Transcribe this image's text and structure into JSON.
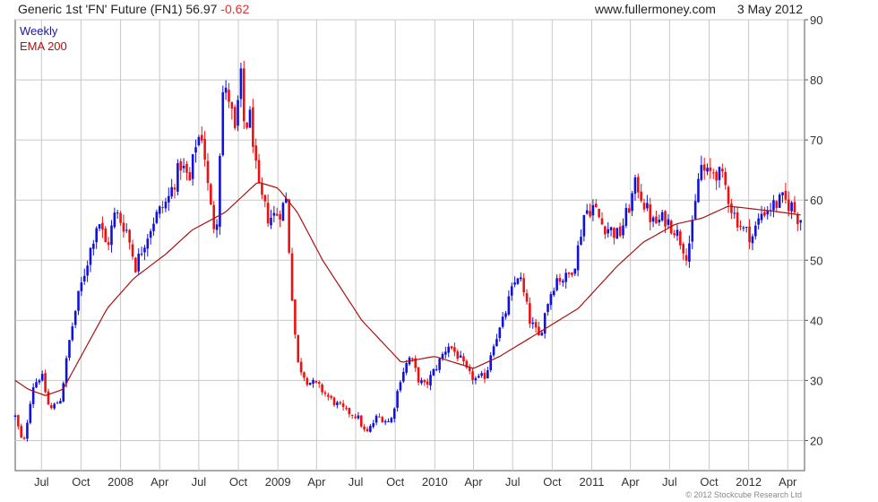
{
  "header": {
    "instrument": "Generic 1st 'FN' Future (FN1)",
    "last_price": "56.97",
    "change": "-0.62",
    "site": "www.fullermoney.com",
    "date": "3 May 2012"
  },
  "footer": {
    "copyright": "© 2012 Stockcube Research Ltd"
  },
  "colors": {
    "up": "#1111dd",
    "down": "#ee1111",
    "ema": "#aa1111",
    "grid": "#c8c8c8",
    "axis": "#555555"
  },
  "chart_data": {
    "type": "candlestick",
    "legend": [
      {
        "label": "Weekly",
        "color": "#1a1a9a"
      },
      {
        "label": "EMA 200",
        "color": "#aa1111"
      }
    ],
    "ylim": [
      15,
      90
    ],
    "y_ticks": [
      20,
      30,
      40,
      50,
      60,
      70,
      80,
      90
    ],
    "x_tick_labels": [
      "Jul",
      "Oct",
      "2008",
      "Apr",
      "Jul",
      "Oct",
      "2009",
      "Apr",
      "Jul",
      "Oct",
      "2010",
      "Apr",
      "Jul",
      "Oct",
      "2011",
      "Apr",
      "Jul",
      "Oct",
      "2012",
      "Apr"
    ],
    "x_tick_months": [
      "2007-07",
      "2007-10",
      "2008-01",
      "2008-04",
      "2008-07",
      "2008-10",
      "2009-01",
      "2009-04",
      "2009-07",
      "2009-10",
      "2010-01",
      "2010-04",
      "2010-07",
      "2010-10",
      "2011-01",
      "2011-04",
      "2011-07",
      "2011-10",
      "2012-01",
      "2012-04"
    ],
    "x_range": [
      "2007-05-01",
      "2012-05-10"
    ],
    "close_anchors": [
      [
        "2007-05-01",
        24
      ],
      [
        "2007-05-20",
        19
      ],
      [
        "2007-06-10",
        29
      ],
      [
        "2007-07-01",
        31
      ],
      [
        "2007-07-20",
        25
      ],
      [
        "2007-08-15",
        27
      ],
      [
        "2007-09-05",
        37
      ],
      [
        "2007-09-25",
        44
      ],
      [
        "2007-10-20",
        51
      ],
      [
        "2007-11-10",
        57
      ],
      [
        "2007-11-30",
        52
      ],
      [
        "2007-12-20",
        58
      ],
      [
        "2008-01-15",
        55
      ],
      [
        "2008-02-05",
        49
      ],
      [
        "2008-02-25",
        53
      ],
      [
        "2008-03-20",
        57
      ],
      [
        "2008-04-20",
        60
      ],
      [
        "2008-05-20",
        66
      ],
      [
        "2008-06-10",
        63
      ],
      [
        "2008-06-25",
        70
      ],
      [
        "2008-07-10",
        71
      ],
      [
        "2008-07-25",
        60
      ],
      [
        "2008-08-10",
        54
      ],
      [
        "2008-08-25",
        78
      ],
      [
        "2008-09-10",
        77
      ],
      [
        "2008-09-25",
        70
      ],
      [
        "2008-10-05",
        82
      ],
      [
        "2008-10-15",
        72
      ],
      [
        "2008-10-30",
        74
      ],
      [
        "2008-11-15",
        62
      ],
      [
        "2008-12-10",
        57
      ],
      [
        "2009-01-05",
        58
      ],
      [
        "2009-01-20",
        60
      ],
      [
        "2009-02-01",
        46
      ],
      [
        "2009-02-15",
        33
      ],
      [
        "2009-03-10",
        30
      ],
      [
        "2009-04-05",
        29
      ],
      [
        "2009-05-01",
        27
      ],
      [
        "2009-06-05",
        25
      ],
      [
        "2009-07-05",
        24
      ],
      [
        "2009-07-25",
        21
      ],
      [
        "2009-08-20",
        24
      ],
      [
        "2009-09-20",
        23
      ],
      [
        "2009-10-15",
        31
      ],
      [
        "2009-11-05",
        34
      ],
      [
        "2009-11-25",
        30
      ],
      [
        "2009-12-10",
        29
      ],
      [
        "2010-01-10",
        33
      ],
      [
        "2010-02-01",
        36
      ],
      [
        "2010-02-25",
        34
      ],
      [
        "2010-03-20",
        31
      ],
      [
        "2010-04-10",
        30
      ],
      [
        "2010-05-01",
        31
      ],
      [
        "2010-05-15",
        36
      ],
      [
        "2010-06-05",
        39
      ],
      [
        "2010-06-25",
        44
      ],
      [
        "2010-07-15",
        48
      ],
      [
        "2010-08-10",
        40
      ],
      [
        "2010-09-01",
        37
      ],
      [
        "2010-09-20",
        43
      ],
      [
        "2010-10-10",
        47
      ],
      [
        "2010-11-05",
        47
      ],
      [
        "2010-11-25",
        50
      ],
      [
        "2010-12-15",
        58
      ],
      [
        "2011-01-05",
        59
      ],
      [
        "2011-01-25",
        56
      ],
      [
        "2011-02-15",
        55
      ],
      [
        "2011-03-05",
        54
      ],
      [
        "2011-03-25",
        58
      ],
      [
        "2011-04-15",
        63
      ],
      [
        "2011-05-05",
        59
      ],
      [
        "2011-05-25",
        56
      ],
      [
        "2011-06-20",
        57
      ],
      [
        "2011-07-15",
        55
      ],
      [
        "2011-08-10",
        51
      ],
      [
        "2011-08-25",
        56
      ],
      [
        "2011-09-10",
        66
      ],
      [
        "2011-09-25",
        64
      ],
      [
        "2011-10-15",
        65
      ],
      [
        "2011-11-05",
        63
      ],
      [
        "2011-11-25",
        58
      ],
      [
        "2011-12-20",
        55
      ],
      [
        "2012-01-10",
        54
      ],
      [
        "2012-02-01",
        58
      ],
      [
        "2012-02-25",
        59
      ],
      [
        "2012-03-20",
        60
      ],
      [
        "2012-04-10",
        59
      ],
      [
        "2012-04-25",
        57
      ],
      [
        "2012-05-03",
        57
      ]
    ],
    "ema_anchors": [
      [
        "2007-05-01",
        30
      ],
      [
        "2007-06-01",
        28.5
      ],
      [
        "2007-07-10",
        27.5
      ],
      [
        "2007-08-20",
        28.5
      ],
      [
        "2007-10-01",
        34
      ],
      [
        "2007-12-01",
        42
      ],
      [
        "2008-02-01",
        47
      ],
      [
        "2008-04-15",
        51
      ],
      [
        "2008-06-15",
        55
      ],
      [
        "2008-09-01",
        58
      ],
      [
        "2008-11-15",
        63
      ],
      [
        "2009-01-01",
        62
      ],
      [
        "2009-02-15",
        58
      ],
      [
        "2009-04-15",
        50
      ],
      [
        "2009-07-15",
        40
      ],
      [
        "2009-10-15",
        33
      ],
      [
        "2010-01-01",
        34
      ],
      [
        "2010-04-01",
        32
      ],
      [
        "2010-06-01",
        34
      ],
      [
        "2010-09-01",
        38
      ],
      [
        "2010-12-01",
        42
      ],
      [
        "2011-03-01",
        49
      ],
      [
        "2011-05-01",
        53
      ],
      [
        "2011-07-15",
        56
      ],
      [
        "2011-09-15",
        57
      ],
      [
        "2011-11-15",
        59
      ],
      [
        "2012-01-15",
        58.5
      ],
      [
        "2012-03-15",
        58
      ],
      [
        "2012-05-03",
        57.5
      ]
    ]
  }
}
